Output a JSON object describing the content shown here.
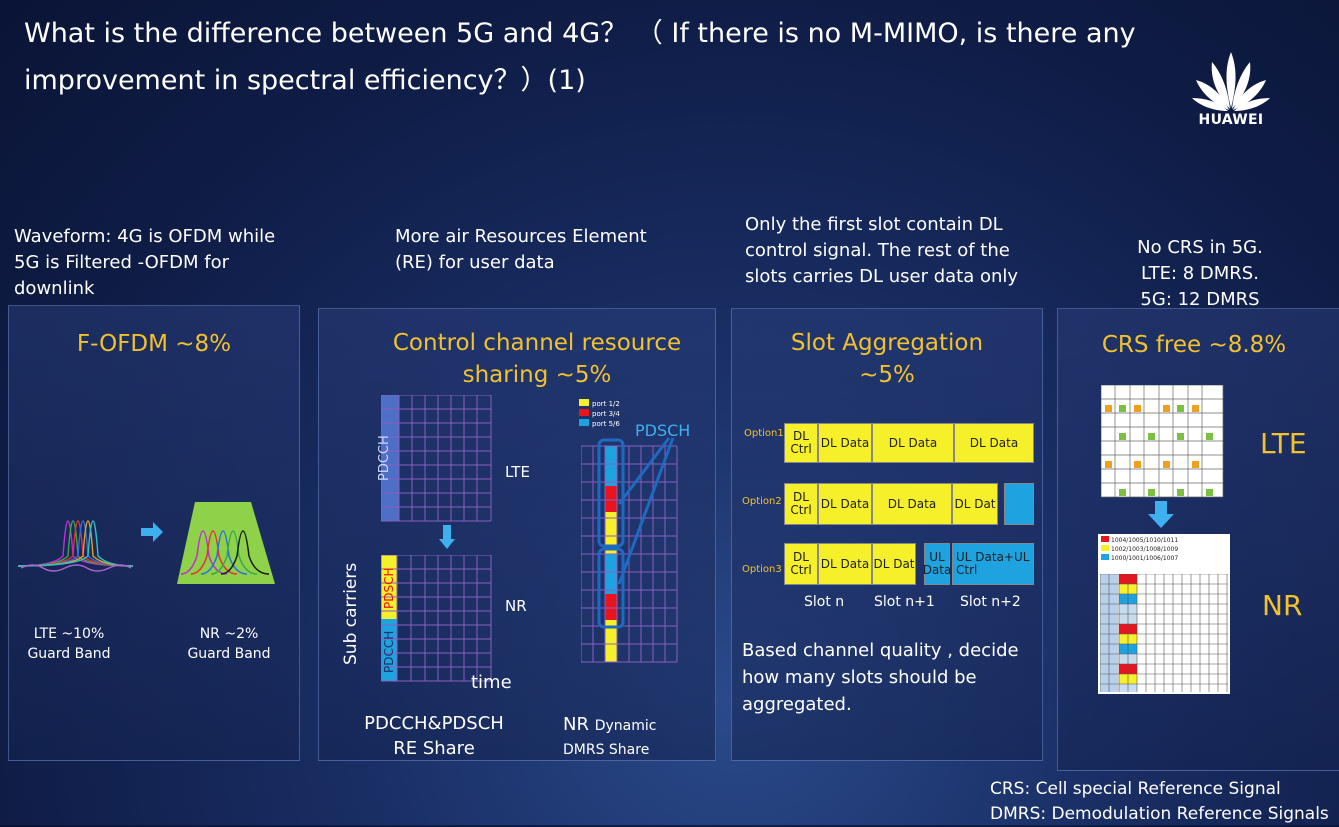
{
  "title": {
    "line1": "What is the difference between 5G and 4G？ （ If there is no M-MIMO, is there any",
    "line2": "improvement in spectral efficiency？）(1)"
  },
  "logo": {
    "text": "HUAWEI"
  },
  "notes": {
    "waveform": "Waveform:  4G is OFDM  while 5G is Filtered -OFDM for downlink",
    "air": "More air Resources Element (RE) for user data",
    "slot": "Only the first slot contain DL control signal.  The rest of the slots carries DL user data only",
    "crs_l1": "No CRS in 5G.",
    "crs_l2": "LTE: 8 DMRS.",
    "crs_l3": "5G: 12 DMRS"
  },
  "panel1": {
    "title": "F-OFDM ~8%",
    "lte_l1": "LTE ~10%",
    "lte_l2": "Guard Band",
    "nr_l1": "NR ~2%",
    "nr_l2": "Guard Band"
  },
  "panel2": {
    "title_l1": "Control channel resource",
    "title_l2": "sharing ~5%",
    "pdcch": "PDCCH",
    "pdsch": "PDSCH",
    "lte": "LTE",
    "nr": "NR",
    "subcarriers": "Sub carriers",
    "time": "time",
    "legend": [
      "port 1/2",
      "port 3/4",
      "port 5/6"
    ],
    "pdsch_big": "PDSCH",
    "cap1_l1": "PDCCH&PDSCH",
    "cap1_l2": "RE Share",
    "cap2_l1a": "NR",
    "cap2_l1b": "Dynamic",
    "cap2_l2": "DMRS Share"
  },
  "panel3": {
    "title_l1": "Slot Aggregation",
    "title_l2": "~5%",
    "options": [
      "Option1",
      "Option2",
      "Option3"
    ],
    "dl_ctrl": "DL Ctrl",
    "dl_data": "DL Data",
    "dl_dat": "DL Dat",
    "ul_data": "UL Data",
    "ul_data_ctrl": "UL Data+UL Ctrl",
    "slots": [
      "Slot n",
      "Slot n+1",
      "Slot n+2"
    ],
    "desc": "Based channel quality , decide how many slots should be aggregated."
  },
  "panel4": {
    "title": "CRS free ~8.8%",
    "lte": "LTE",
    "nr": "NR",
    "legend": [
      "1004/1005/1010/1011",
      "1002/1003/1008/1009",
      "1000/1001/1006/1007"
    ]
  },
  "footer": {
    "crs_key": "CRS:",
    "crs_val": "Cell special Reference Signal",
    "dmrs_key": "DMRS:",
    "dmrs_val": "Demodulation Reference Signals"
  },
  "colors": {
    "accent": "#f2c12e",
    "yellow": "#f5f02a",
    "blue": "#1ea3e0",
    "red": "#e8141e",
    "green": "#7ac143"
  }
}
